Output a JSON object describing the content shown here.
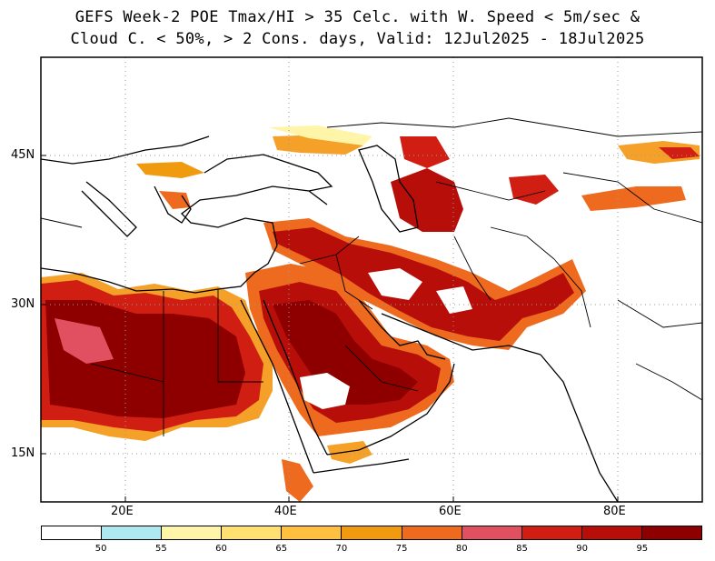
{
  "title": {
    "line1": "GEFS Week-2 POE Tmax/HI > 35 Celc. with W. Speed < 5m/sec &",
    "line2": "Cloud C. < 50%, > 2 Cons. days, Valid: 12Jul2025 - 18Jul2025"
  },
  "axes": {
    "lon_labels": [
      "20E",
      "40E",
      "60E",
      "80E"
    ],
    "lat_labels": [
      "45N",
      "30N",
      "15N"
    ],
    "lon_range": [
      10,
      90
    ],
    "lat_range": [
      10,
      55
    ]
  },
  "colorbar": {
    "tick_labels": [
      "50",
      "55",
      "60",
      "65",
      "70",
      "75",
      "80",
      "85",
      "90",
      "95"
    ],
    "colors": [
      "#ffffff",
      "#aee8f0",
      "#fff5a8",
      "#ffe070",
      "#ffc040",
      "#f09a10",
      "#ee6a1e",
      "#e05060",
      "#d01e12",
      "#b80e0a",
      "#8e0000"
    ]
  }
}
